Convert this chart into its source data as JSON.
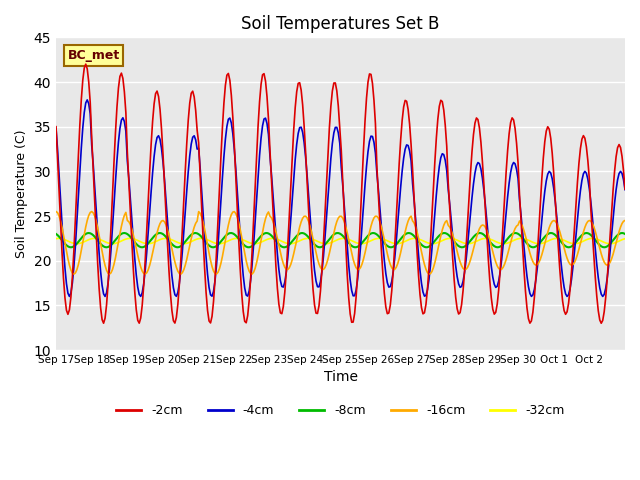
{
  "title": "Soil Temperatures Set B",
  "xlabel": "Time",
  "ylabel": "Soil Temperature (C)",
  "ylim": [
    10,
    45
  ],
  "yticks": [
    10,
    15,
    20,
    25,
    30,
    35,
    40,
    45
  ],
  "annotation": "BC_met",
  "legend_labels": [
    "-2cm",
    "-4cm",
    "-8cm",
    "-16cm",
    "-32cm"
  ],
  "legend_colors": [
    "#dd0000",
    "#0000cc",
    "#00bb00",
    "#ffaa00",
    "#ffff00"
  ],
  "background_color": "#e8e8e8",
  "plot_bg_color": "#e8e8e8",
  "grid_color": "white",
  "xtick_labels": [
    "Sep 17",
    "Sep 18",
    "Sep 19",
    "Sep 20",
    "Sep 21",
    "Sep 22",
    "Sep 23",
    "Sep 24",
    "Sep 25",
    "Sep 26",
    "Sep 27",
    "Sep 28",
    "Sep 29",
    "Sep 30",
    "Oct 1",
    "Oct 2"
  ],
  "n_days": 16
}
